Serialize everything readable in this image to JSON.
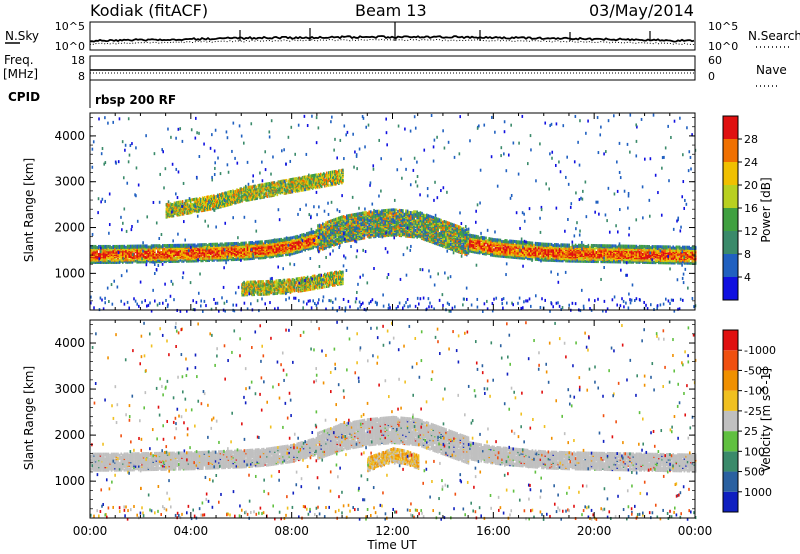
{
  "header": {
    "station": "Kodiak (fitACF)",
    "beam": "Beam 13",
    "date": "03/May/2014"
  },
  "top_panel": {
    "left_label": "N.Sky",
    "right_label": "N.Search",
    "left_ticks": [
      "10^5",
      "10^0"
    ],
    "right_ticks": [
      "10^5",
      "10^0"
    ]
  },
  "freq_panel": {
    "left_label_1": "Freq.",
    "left_label_2": "[MHz]",
    "right_label": "Nave",
    "left_ticks": [
      "18",
      "8"
    ],
    "right_ticks": [
      "60",
      "0"
    ]
  },
  "cpid": {
    "label": "CPID",
    "value": "rbsp 200 RF"
  },
  "chart_data": [
    {
      "type": "heatmap",
      "name": "Power",
      "ylabel": "Slant Range [km]",
      "xlabel": "Time UT",
      "xlim": [
        0,
        24
      ],
      "ylim": [
        200,
        4500
      ],
      "x_ticks": [
        "00:00",
        "04:00",
        "08:00",
        "12:00",
        "16:00",
        "20:00",
        "00:00"
      ],
      "y_ticks": [
        "1000",
        "2000",
        "3000",
        "4000"
      ],
      "colorbar": {
        "label": "Power [dB]",
        "ticks": [
          "4",
          "8",
          "12",
          "16",
          "20",
          "24",
          "28"
        ],
        "colors": [
          "#1010e0",
          "#2060c0",
          "#3a8a6a",
          "#40a040",
          "#b8d020",
          "#f0c000",
          "#f07000",
          "#e01010"
        ]
      },
      "bands": [
        {
          "x": [
            0,
            1,
            2,
            3,
            4,
            5,
            6,
            7,
            8,
            9,
            10,
            11,
            12,
            13,
            14,
            15,
            16,
            17,
            18,
            19,
            20,
            21,
            22,
            23,
            24
          ],
          "range": [
            1450,
            1450,
            1460,
            1470,
            1480,
            1500,
            1520,
            1560,
            1640,
            1800,
            2000,
            2100,
            2150,
            2100,
            1900,
            1700,
            1600,
            1550,
            1500,
            1480,
            1470,
            1460,
            1450,
            1440,
            1430
          ],
          "level": "strong"
        },
        {
          "x": [
            3,
            4,
            5,
            6,
            7,
            8,
            9,
            10
          ],
          "range": [
            2400,
            2500,
            2600,
            2750,
            2850,
            2950,
            3050,
            3150
          ],
          "level": "medium"
        },
        {
          "x": [
            6,
            7,
            8,
            9,
            10
          ],
          "range": [
            700,
            720,
            760,
            850,
            950
          ],
          "level": "medium"
        }
      ]
    },
    {
      "type": "heatmap",
      "name": "Velocity",
      "ylabel": "Slant Range [km]",
      "xlabel": "Time UT",
      "xlim": [
        0,
        24
      ],
      "ylim": [
        200,
        4500
      ],
      "x_ticks": [
        "00:00",
        "04:00",
        "08:00",
        "12:00",
        "16:00",
        "20:00",
        "00:00"
      ],
      "y_ticks": [
        "1000",
        "2000",
        "3000",
        "4000"
      ],
      "colorbar": {
        "label": "Velocity [m s^-1]",
        "ticks": [
          "1000",
          "500",
          "100",
          "25",
          "-25",
          "-100",
          "-500",
          "-1000"
        ],
        "colors": [
          "#1020c0",
          "#2a60a0",
          "#3a8a6a",
          "#60c040",
          "#c0c0c0",
          "#f0c020",
          "#f09000",
          "#f05010",
          "#e01010"
        ]
      },
      "ground_scatter_color": "#c0c0c0",
      "bands": [
        {
          "x": [
            0,
            1,
            2,
            3,
            4,
            5,
            6,
            7,
            8,
            9,
            10,
            11,
            12,
            13,
            14,
            15,
            16,
            17,
            18,
            19,
            20,
            21,
            22,
            23,
            24
          ],
          "range": [
            1450,
            1450,
            1460,
            1470,
            1480,
            1500,
            1520,
            1560,
            1640,
            1800,
            2000,
            2100,
            2150,
            2100,
            1900,
            1700,
            1600,
            1550,
            1500,
            1480,
            1470,
            1460,
            1450,
            1440,
            1430
          ],
          "level": "ground"
        },
        {
          "x": [
            11,
            11.5,
            12,
            12.5,
            13
          ],
          "range": [
            1400,
            1500,
            1600,
            1550,
            1450
          ],
          "level": "negative"
        }
      ]
    }
  ],
  "time_axis_label": "Time UT"
}
